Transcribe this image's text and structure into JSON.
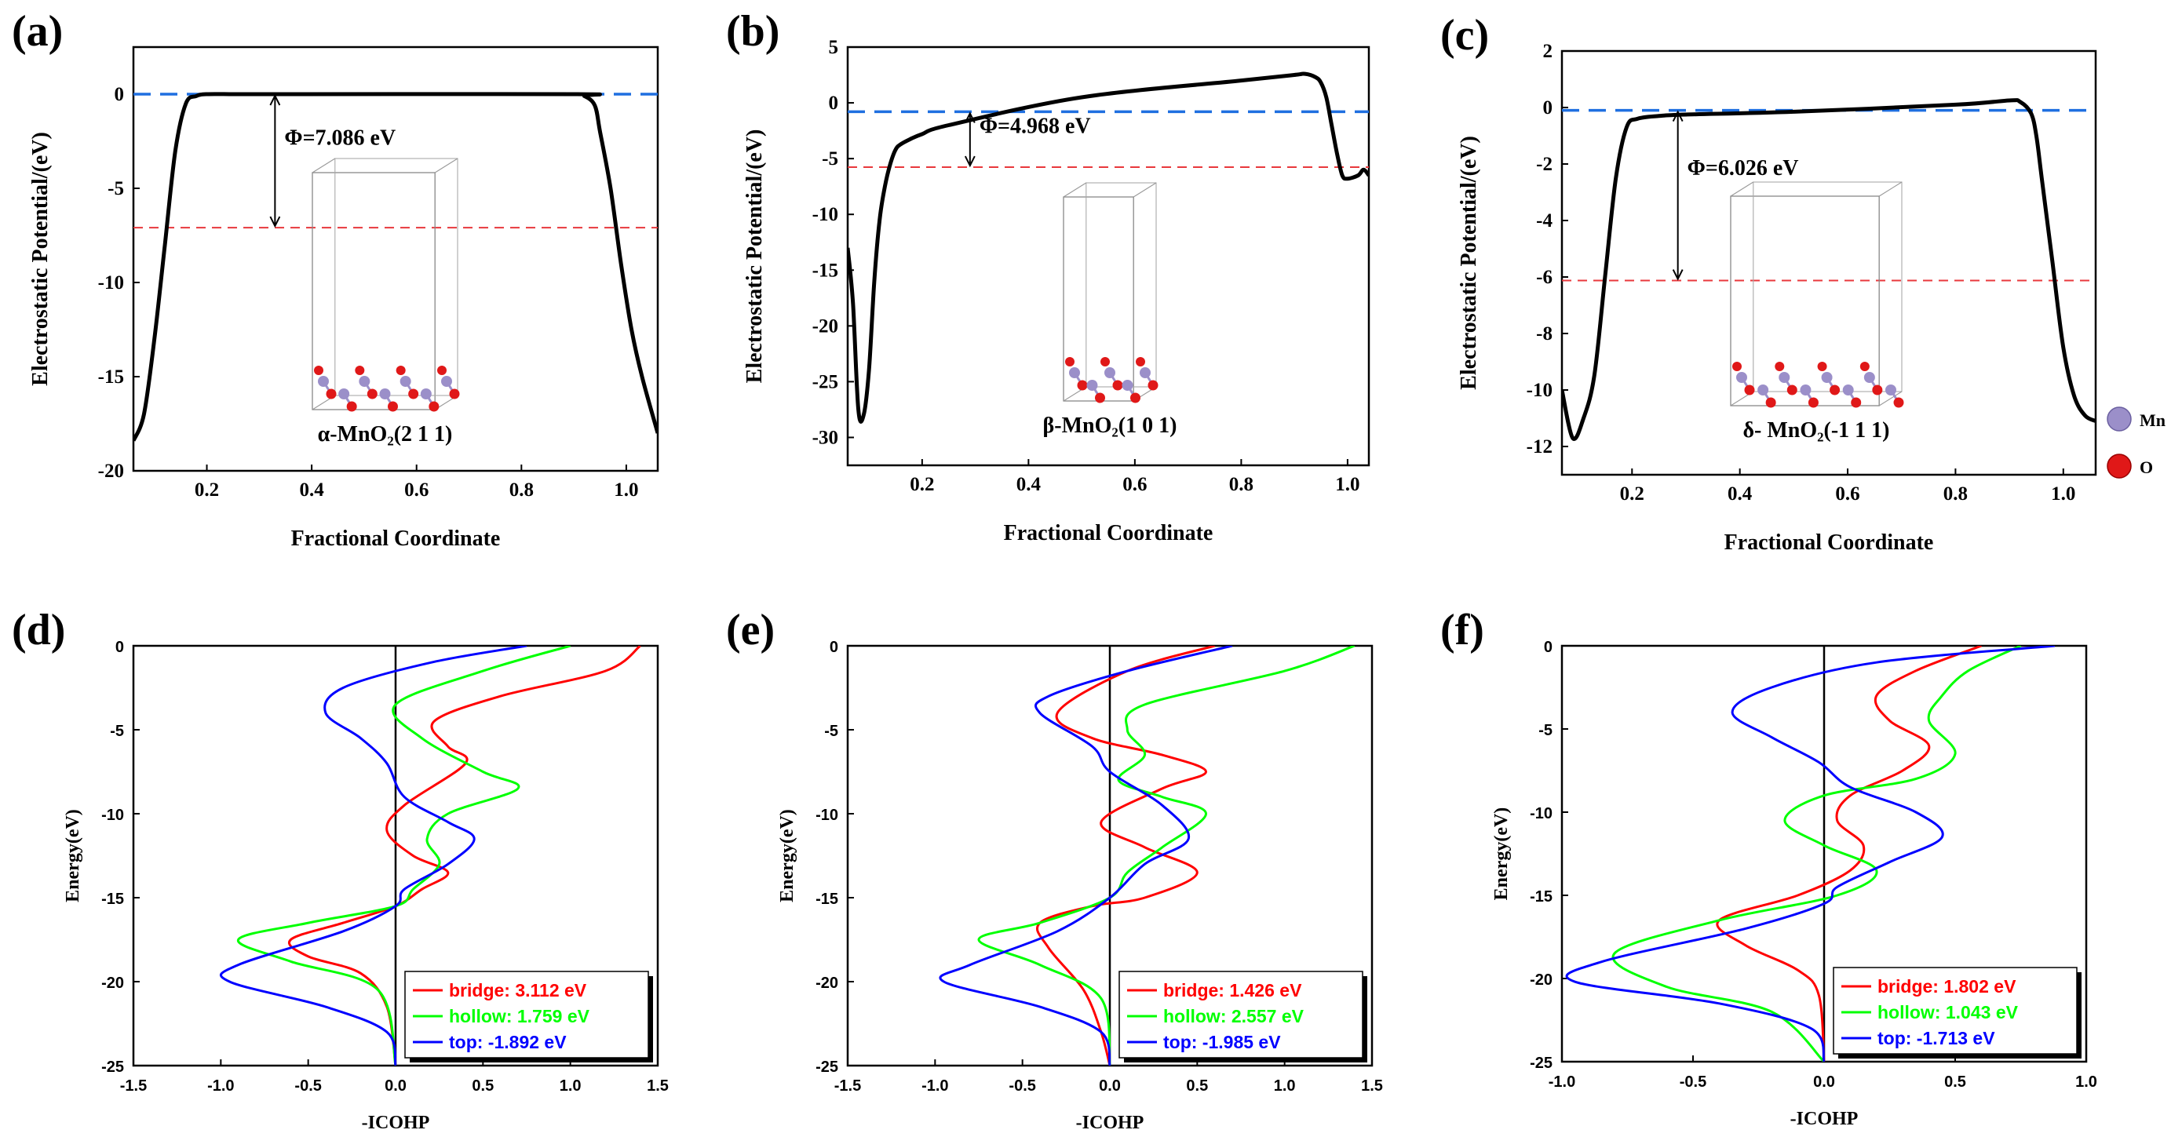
{
  "chart_data": [
    {
      "id": "a",
      "panel_label": "(a)",
      "type": "line",
      "xlabel": "Fractional Coordinate",
      "ylabel": "Electrostatic Potential/(eV)",
      "xlim": [
        0.06,
        1.06
      ],
      "ylim": [
        -20,
        2.5
      ],
      "xticks": [
        0.2,
        0.4,
        0.6,
        0.8,
        1.0
      ],
      "xtick_labels": [
        "0.2",
        "0.4",
        "0.6",
        "0.8",
        "1.0"
      ],
      "yticks": [
        -20,
        -15,
        -10,
        -5,
        0
      ],
      "ytick_labels": [
        "-20",
        "-15",
        "-10",
        "-5",
        "0"
      ],
      "vacuum_level": 0,
      "fermi_level": -7.086,
      "annotation": "Φ=7.086 eV",
      "arrow_x": 0.33,
      "inset_label": "α-MnO₂(2 1 1)",
      "series": [
        {
          "name": "potential",
          "color": "#000000",
          "x": [
            0.06,
            0.08,
            0.1,
            0.12,
            0.14,
            0.16,
            0.18,
            0.2,
            0.25,
            0.3,
            0.9,
            0.92,
            0.94,
            0.95,
            0.97,
            0.99,
            1.01,
            1.03,
            1.06
          ],
          "y": [
            -18.4,
            -17.0,
            -13.0,
            -8.0,
            -3.0,
            -0.5,
            -0.1,
            0,
            0,
            0,
            0,
            -0.1,
            -0.6,
            -2.0,
            -5.0,
            -9.0,
            -12.5,
            -15.0,
            -18.0
          ]
        }
      ]
    },
    {
      "id": "b",
      "panel_label": "(b)",
      "type": "line",
      "xlabel": "Fractional Coordinate",
      "ylabel": "Electrostatic Potential/(eV)",
      "xlim": [
        0.06,
        1.04
      ],
      "ylim": [
        -32.5,
        5
      ],
      "xticks": [
        0.2,
        0.4,
        0.6,
        0.8,
        1.0
      ],
      "xtick_labels": [
        "0.2",
        "0.4",
        "0.6",
        "0.8",
        "1.0"
      ],
      "yticks": [
        -30,
        -25,
        -20,
        -15,
        -10,
        -5,
        0,
        5
      ],
      "ytick_labels": [
        "-30",
        "-25",
        "-20",
        "-15",
        "-10",
        "-5",
        "0",
        "5"
      ],
      "vacuum_level": -0.8,
      "fermi_level": -5.768,
      "annotation": "Φ=4.968 eV",
      "arrow_x": 0.29,
      "inset_label": "β-MnO₂(1 0 1)",
      "series": [
        {
          "name": "potential",
          "color": "#000000",
          "x": [
            0.06,
            0.07,
            0.08,
            0.09,
            0.1,
            0.11,
            0.12,
            0.13,
            0.14,
            0.15,
            0.16,
            0.18,
            0.2,
            0.25,
            0.5,
            0.8,
            0.9,
            0.92,
            0.94,
            0.95,
            0.96,
            0.97,
            0.98,
            0.99,
            1.0,
            1.02,
            1.03,
            1.04
          ],
          "y": [
            -13,
            -18,
            -27.5,
            -28,
            -24,
            -16,
            -10.5,
            -7.5,
            -5.5,
            -4.2,
            -3.7,
            -3.2,
            -2.8,
            -2.0,
            0.5,
            2.0,
            2.5,
            2.6,
            2.3,
            1.8,
            0.5,
            -2.0,
            -4.5,
            -6.5,
            -6.8,
            -6.5,
            -6.0,
            -6.5
          ]
        }
      ]
    },
    {
      "id": "c",
      "panel_label": "(c)",
      "type": "line",
      "xlabel": "Fractional Coordinate",
      "ylabel": "Electrostatic Potential/(eV)",
      "xlim": [
        0.07,
        1.06
      ],
      "ylim": [
        -13,
        2
      ],
      "xticks": [
        0.2,
        0.4,
        0.6,
        0.8,
        1.0
      ],
      "xtick_labels": [
        "0.2",
        "0.4",
        "0.6",
        "0.8",
        "1.0"
      ],
      "yticks": [
        -12,
        -10,
        -8,
        -6,
        -4,
        -2,
        0,
        2
      ],
      "ytick_labels": [
        "-12",
        "-10",
        "-8",
        "-6",
        "-4",
        "-2",
        "0",
        "2"
      ],
      "vacuum_level": -0.1,
      "fermi_level": -6.126,
      "annotation": "Φ=6.026 eV",
      "arrow_x": 0.285,
      "inset_label": "δ- MnO₂(-1 1 1)",
      "series": [
        {
          "name": "potential",
          "color": "#000000",
          "x": [
            0.07,
            0.09,
            0.11,
            0.13,
            0.15,
            0.17,
            0.19,
            0.21,
            0.25,
            0.3,
            0.5,
            0.8,
            0.9,
            0.92,
            0.94,
            0.95,
            0.96,
            0.98,
            1.0,
            1.02,
            1.04,
            1.06
          ],
          "y": [
            -10.0,
            -11.7,
            -11.0,
            -9.5,
            -6.0,
            -2.5,
            -0.7,
            -0.4,
            -0.3,
            -0.25,
            -0.15,
            0.1,
            0.25,
            0.2,
            -0.2,
            -1.0,
            -2.5,
            -5.5,
            -8.5,
            -10.2,
            -10.9,
            -11.1
          ]
        }
      ]
    },
    {
      "id": "d",
      "panel_label": "(d)",
      "type": "line",
      "xlabel": "-ICOHP",
      "ylabel": "Energy(eV)",
      "xlim": [
        -1.5,
        1.5
      ],
      "ylim": [
        -25,
        0
      ],
      "xticks": [
        -1.5,
        -1.0,
        -0.5,
        0.0,
        0.5,
        1.0,
        1.5
      ],
      "xtick_labels": [
        "-1.5",
        "-1.0",
        "-0.5",
        "0.0",
        "0.5",
        "1.0",
        "1.5"
      ],
      "yticks": [
        -25,
        -20,
        -15,
        -10,
        -5,
        0
      ],
      "ytick_labels": [
        "-25",
        "-20",
        "-15",
        "-10",
        "-5",
        "0"
      ],
      "series": [
        {
          "name": "bridge",
          "legend": "bridge: 3.112 eV",
          "color": "#ff0000",
          "x": [
            1.4,
            1.2,
            0.6,
            0.22,
            0.3,
            0.4,
            0.05,
            -0.05,
            0.1,
            0.3,
            0.15,
            0.0,
            -0.3,
            -0.6,
            -0.5,
            -0.2,
            -0.05,
            0.0
          ],
          "y": [
            0,
            -1.5,
            -3.0,
            -4.5,
            -6.0,
            -7.0,
            -9.5,
            -11.0,
            -12.5,
            -13.5,
            -14.5,
            -15.5,
            -16.5,
            -17.5,
            -18.5,
            -19.5,
            -21.5,
            -25
          ]
        },
        {
          "name": "hollow",
          "legend": "hollow: 1.759 eV",
          "color": "#00ff00",
          "x": [
            1.0,
            0.5,
            0.0,
            0.15,
            0.5,
            0.7,
            0.3,
            0.18,
            0.25,
            0.1,
            0.0,
            -0.5,
            -0.9,
            -0.6,
            -0.1,
            0.0
          ],
          "y": [
            0,
            -1.5,
            -3.5,
            -5.5,
            -7.5,
            -8.5,
            -10.0,
            -11.5,
            -13.0,
            -14.5,
            -15.5,
            -16.5,
            -17.5,
            -18.8,
            -20.5,
            -25
          ]
        },
        {
          "name": "top",
          "legend": "top: -1.892 eV",
          "color": "#0000ff",
          "x": [
            0.75,
            0.2,
            -0.3,
            -0.4,
            -0.2,
            -0.05,
            0.05,
            0.3,
            0.45,
            0.3,
            0.05,
            0.0,
            -0.3,
            -0.9,
            -0.95,
            -0.4,
            -0.05,
            0.0
          ],
          "y": [
            0,
            -1.0,
            -2.5,
            -4.0,
            -5.5,
            -7.0,
            -9.0,
            -10.5,
            -11.5,
            -13.0,
            -14.5,
            -15.5,
            -17.0,
            -19.0,
            -20.0,
            -21.5,
            -23.0,
            -25
          ]
        }
      ],
      "legend": [
        "bridge: 3.112 eV",
        "hollow: 1.759 eV",
        "top: -1.892 eV"
      ]
    },
    {
      "id": "e",
      "panel_label": "(e)",
      "type": "line",
      "xlabel": "-ICOHP",
      "ylabel": "Energy(eV)",
      "xlim": [
        -1.5,
        1.5
      ],
      "ylim": [
        -25,
        0
      ],
      "xticks": [
        -1.5,
        -1.0,
        -0.5,
        0.0,
        0.5,
        1.0,
        1.5
      ],
      "xtick_labels": [
        "-1.5",
        "-1.0",
        "-0.5",
        "0.0",
        "0.5",
        "1.0",
        "1.5"
      ],
      "yticks": [
        -25,
        -20,
        -15,
        -10,
        -5,
        0
      ],
      "ytick_labels": [
        "-25",
        "-20",
        "-15",
        "-10",
        "-5",
        "0"
      ],
      "series": [
        {
          "name": "bridge",
          "legend": "bridge: 1.426 eV",
          "color": "#ff0000",
          "x": [
            0.6,
            0.1,
            -0.3,
            -0.1,
            0.3,
            0.55,
            0.3,
            -0.05,
            0.2,
            0.5,
            0.2,
            -0.1,
            -0.4,
            -0.35,
            -0.15,
            -0.05,
            0.0
          ],
          "y": [
            0,
            -1.5,
            -4.0,
            -5.5,
            -6.5,
            -7.5,
            -8.5,
            -10.5,
            -12.0,
            -13.5,
            -15.0,
            -15.5,
            -16.5,
            -18.0,
            -20.5,
            -23.0,
            -25
          ]
        },
        {
          "name": "hollow",
          "legend": "hollow: 2.557 eV",
          "color": "#00ff00",
          "x": [
            1.4,
            1.0,
            0.2,
            0.1,
            0.2,
            0.05,
            0.3,
            0.55,
            0.3,
            0.1,
            0.0,
            -0.4,
            -0.75,
            -0.4,
            -0.05,
            0.0
          ],
          "y": [
            0,
            -1.5,
            -3.5,
            -5.0,
            -6.5,
            -8.0,
            -9.0,
            -10.0,
            -12.0,
            -13.5,
            -15.0,
            -16.5,
            -17.5,
            -19.0,
            -21.0,
            -25
          ]
        },
        {
          "name": "top",
          "legend": "top: -1.985 eV",
          "color": "#0000ff",
          "x": [
            0.7,
            0.1,
            -0.35,
            -0.4,
            -0.1,
            0.0,
            0.3,
            0.45,
            0.2,
            0.0,
            -0.3,
            -0.8,
            -0.95,
            -0.4,
            -0.05,
            0.0
          ],
          "y": [
            0,
            -1.5,
            -3.0,
            -4.0,
            -6.0,
            -7.5,
            -9.5,
            -11.5,
            -13.0,
            -15.0,
            -17.0,
            -19.0,
            -20.0,
            -21.5,
            -23.0,
            -25
          ]
        }
      ],
      "legend": [
        "bridge: 1.426 eV",
        "hollow: 2.557 eV",
        "top: -1.985 eV"
      ]
    },
    {
      "id": "f",
      "panel_label": "(f)",
      "type": "line",
      "xlabel": "-ICOHP",
      "ylabel": "Energy(eV)",
      "xlim": [
        -1.0,
        1.0
      ],
      "ylim": [
        -25,
        0
      ],
      "xticks": [
        -1.0,
        -0.5,
        0.0,
        0.5,
        1.0
      ],
      "xtick_labels": [
        "-1.0",
        "-0.5",
        "0.0",
        "0.5",
        "1.0"
      ],
      "yticks": [
        -25,
        -20,
        -15,
        -10,
        -5,
        0
      ],
      "ytick_labels": [
        "-25",
        "-20",
        "-15",
        "-10",
        "-5",
        "0"
      ],
      "series": [
        {
          "name": "bridge",
          "legend": "bridge: 1.802 eV",
          "color": "#ff0000",
          "x": [
            0.6,
            0.35,
            0.2,
            0.25,
            0.4,
            0.3,
            0.1,
            0.05,
            0.15,
            0.1,
            -0.1,
            -0.4,
            -0.3,
            -0.1,
            -0.02,
            0.0
          ],
          "y": [
            0,
            -1.5,
            -3.0,
            -4.5,
            -6.0,
            -7.5,
            -9.0,
            -10.5,
            -12.0,
            -13.5,
            -15.0,
            -16.5,
            -18.0,
            -19.5,
            -21.0,
            -25
          ]
        },
        {
          "name": "hollow",
          "legend": "hollow: 1.043 eV",
          "color": "#00ff00",
          "x": [
            0.75,
            0.55,
            0.45,
            0.4,
            0.5,
            0.35,
            0.0,
            -0.15,
            0.0,
            0.2,
            0.05,
            -0.4,
            -0.8,
            -0.6,
            -0.2,
            0.0
          ],
          "y": [
            0,
            -1.5,
            -3.0,
            -4.5,
            -6.5,
            -8.0,
            -9.0,
            -10.5,
            -12.0,
            -13.5,
            -15.0,
            -16.5,
            -18.5,
            -20.5,
            -22.0,
            -25
          ]
        },
        {
          "name": "top",
          "legend": "top: -1.713 eV",
          "color": "#0000ff",
          "x": [
            0.88,
            0.2,
            -0.2,
            -0.35,
            -0.2,
            -0.02,
            0.1,
            0.35,
            0.45,
            0.25,
            0.05,
            0.0,
            -0.3,
            -0.85,
            -0.95,
            -0.4,
            -0.05,
            0.0
          ],
          "y": [
            0,
            -1.0,
            -2.5,
            -4.0,
            -5.5,
            -7.0,
            -8.5,
            -10.0,
            -11.5,
            -13.0,
            -14.5,
            -15.5,
            -17.0,
            -19.0,
            -20.2,
            -21.5,
            -23.0,
            -25
          ]
        }
      ],
      "legend": [
        "bridge: 1.802 eV",
        "hollow: 1.043 eV",
        "top: -1.713 eV"
      ]
    }
  ],
  "shared_legend": {
    "items": [
      {
        "label": "Mn",
        "color": "#9b8fc9"
      },
      {
        "label": "O",
        "color": "#e01818"
      }
    ]
  },
  "colors": {
    "vacuum_line": "#1f6fe0",
    "fermi_line": "#e8383c"
  }
}
